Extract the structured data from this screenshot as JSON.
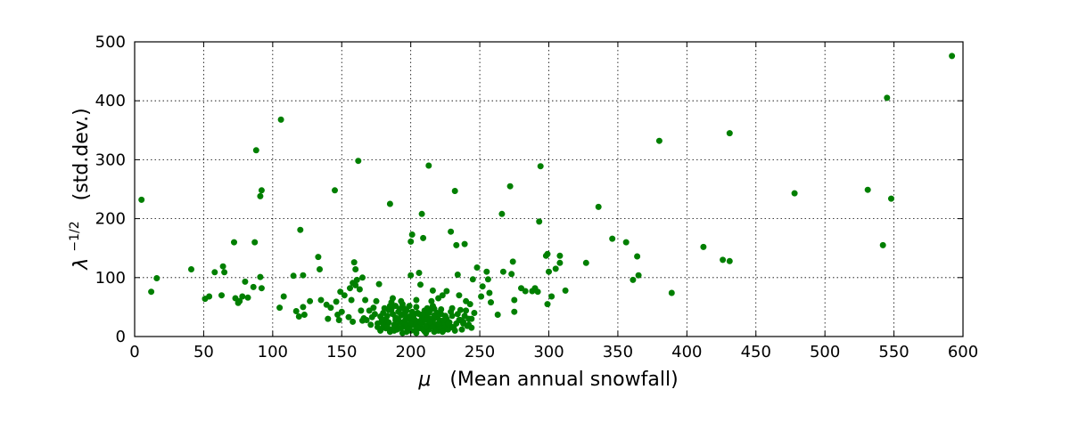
{
  "chart_data": {
    "type": "scatter",
    "xlabel_symbol": "μ",
    "xlabel_text": "(Mean annual snowfall)",
    "ylabel_symbol": "λ",
    "ylabel_exponent": "−1/2",
    "ylabel_text": "(std.dev.)",
    "xlim": [
      0,
      600
    ],
    "ylim": [
      0,
      500
    ],
    "xticks": [
      0,
      50,
      100,
      150,
      200,
      250,
      300,
      350,
      400,
      450,
      500,
      550,
      600
    ],
    "yticks": [
      0,
      100,
      200,
      300,
      400,
      500
    ],
    "grid": true,
    "marker_color": "#007f00",
    "points": [
      [
        5,
        232
      ],
      [
        12,
        76
      ],
      [
        16,
        99
      ],
      [
        41,
        114
      ],
      [
        51,
        64
      ],
      [
        54,
        68
      ],
      [
        58,
        109
      ],
      [
        63,
        70
      ],
      [
        64,
        119
      ],
      [
        65,
        109
      ],
      [
        72,
        160
      ],
      [
        73,
        65
      ],
      [
        75,
        57
      ],
      [
        76,
        60
      ],
      [
        78,
        68
      ],
      [
        80,
        93
      ],
      [
        82,
        66
      ],
      [
        86,
        84
      ],
      [
        87,
        160
      ],
      [
        88,
        316
      ],
      [
        91,
        101
      ],
      [
        91,
        238
      ],
      [
        92,
        248
      ],
      [
        92,
        82
      ],
      [
        105,
        49
      ],
      [
        106,
        368
      ],
      [
        108,
        68
      ],
      [
        115,
        103
      ],
      [
        117,
        43
      ],
      [
        119,
        34
      ],
      [
        120,
        181
      ],
      [
        122,
        104
      ],
      [
        122,
        50
      ],
      [
        123,
        37
      ],
      [
        127,
        60
      ],
      [
        133,
        135
      ],
      [
        134,
        114
      ],
      [
        135,
        62
      ],
      [
        139,
        54
      ],
      [
        140,
        30
      ],
      [
        142,
        49
      ],
      [
        145,
        248
      ],
      [
        146,
        59
      ],
      [
        147,
        37
      ],
      [
        148,
        28
      ],
      [
        149,
        76
      ],
      [
        150,
        42
      ],
      [
        152,
        70
      ],
      [
        155,
        33
      ],
      [
        156,
        82
      ],
      [
        157,
        62
      ],
      [
        158,
        91
      ],
      [
        158,
        25
      ],
      [
        159,
        126
      ],
      [
        160,
        114
      ],
      [
        160,
        87
      ],
      [
        161,
        96
      ],
      [
        162,
        298
      ],
      [
        163,
        80
      ],
      [
        164,
        44
      ],
      [
        165,
        27
      ],
      [
        165,
        100
      ],
      [
        166,
        31
      ],
      [
        167,
        62
      ],
      [
        170,
        44
      ],
      [
        172,
        33
      ],
      [
        173,
        49
      ],
      [
        175,
        60
      ],
      [
        176,
        22
      ],
      [
        177,
        89
      ],
      [
        178,
        34
      ],
      [
        180,
        15
      ],
      [
        180,
        40
      ],
      [
        182,
        30
      ],
      [
        184,
        45
      ],
      [
        185,
        225
      ],
      [
        186,
        58
      ],
      [
        187,
        65
      ],
      [
        189,
        32
      ],
      [
        190,
        18
      ],
      [
        192,
        47
      ],
      [
        193,
        60
      ],
      [
        194,
        22
      ],
      [
        195,
        39
      ],
      [
        196,
        28
      ],
      [
        198,
        15
      ],
      [
        199,
        52
      ],
      [
        200,
        104
      ],
      [
        200,
        161
      ],
      [
        201,
        173
      ],
      [
        202,
        35
      ],
      [
        204,
        62
      ],
      [
        205,
        25
      ],
      [
        206,
        108
      ],
      [
        207,
        88
      ],
      [
        208,
        208
      ],
      [
        209,
        167
      ],
      [
        210,
        44
      ],
      [
        212,
        18
      ],
      [
        213,
        290
      ],
      [
        214,
        30
      ],
      [
        215,
        60
      ],
      [
        216,
        78
      ],
      [
        217,
        47
      ],
      [
        219,
        20
      ],
      [
        220,
        65
      ],
      [
        222,
        38
      ],
      [
        223,
        70
      ],
      [
        225,
        25
      ],
      [
        226,
        77
      ],
      [
        228,
        15
      ],
      [
        229,
        178
      ],
      [
        230,
        48
      ],
      [
        232,
        247
      ],
      [
        233,
        155
      ],
      [
        234,
        105
      ],
      [
        235,
        70
      ],
      [
        236,
        45
      ],
      [
        238,
        25
      ],
      [
        239,
        157
      ],
      [
        240,
        60
      ],
      [
        242,
        30
      ],
      [
        243,
        55
      ],
      [
        245,
        97
      ],
      [
        248,
        117
      ],
      [
        251,
        68
      ],
      [
        252,
        85
      ],
      [
        255,
        110
      ],
      [
        256,
        97
      ],
      [
        257,
        74
      ],
      [
        258,
        58
      ],
      [
        263,
        37
      ],
      [
        266,
        208
      ],
      [
        267,
        110
      ],
      [
        272,
        255
      ],
      [
        273,
        106
      ],
      [
        274,
        127
      ],
      [
        275,
        62
      ],
      [
        275,
        42
      ],
      [
        280,
        82
      ],
      [
        283,
        77
      ],
      [
        288,
        77
      ],
      [
        290,
        82
      ],
      [
        292,
        76
      ],
      [
        293,
        195
      ],
      [
        294,
        289
      ],
      [
        298,
        137
      ],
      [
        299,
        140
      ],
      [
        299,
        55
      ],
      [
        300,
        110
      ],
      [
        302,
        68
      ],
      [
        305,
        115
      ],
      [
        308,
        125
      ],
      [
        308,
        137
      ],
      [
        312,
        78
      ],
      [
        327,
        125
      ],
      [
        336,
        220
      ],
      [
        346,
        166
      ],
      [
        356,
        160
      ],
      [
        361,
        96
      ],
      [
        364,
        136
      ],
      [
        365,
        104
      ],
      [
        380,
        332
      ],
      [
        389,
        74
      ],
      [
        412,
        152
      ],
      [
        426,
        130
      ],
      [
        431,
        128
      ],
      [
        431,
        345
      ],
      [
        478,
        243
      ],
      [
        531,
        249
      ],
      [
        542,
        155
      ],
      [
        545,
        405
      ],
      [
        548,
        234
      ],
      [
        592,
        476
      ],
      [
        178,
        10
      ],
      [
        182,
        14
      ],
      [
        185,
        8
      ],
      [
        188,
        20
      ],
      [
        190,
        12
      ],
      [
        192,
        25
      ],
      [
        194,
        6
      ],
      [
        196,
        17
      ],
      [
        198,
        30
      ],
      [
        200,
        10
      ],
      [
        202,
        20
      ],
      [
        204,
        6
      ],
      [
        206,
        14
      ],
      [
        208,
        24
      ],
      [
        210,
        9
      ],
      [
        211,
        36
      ],
      [
        213,
        12
      ],
      [
        215,
        20
      ],
      [
        217,
        8
      ],
      [
        219,
        15
      ],
      [
        221,
        27
      ],
      [
        224,
        11
      ],
      [
        226,
        18
      ],
      [
        230,
        35
      ],
      [
        233,
        22
      ],
      [
        237,
        12
      ],
      [
        241,
        18
      ],
      [
        244,
        30
      ],
      [
        184,
        24
      ],
      [
        187,
        38
      ],
      [
        191,
        42
      ],
      [
        195,
        48
      ],
      [
        197,
        8
      ],
      [
        201,
        42
      ],
      [
        203,
        28
      ],
      [
        207,
        16
      ],
      [
        209,
        38
      ],
      [
        211,
        6
      ],
      [
        214,
        44
      ],
      [
        216,
        16
      ],
      [
        218,
        32
      ],
      [
        220,
        10
      ],
      [
        222,
        46
      ],
      [
        225,
        35
      ],
      [
        227,
        12
      ],
      [
        183,
        18
      ],
      [
        186,
        12
      ],
      [
        189,
        28
      ],
      [
        193,
        14
      ],
      [
        197,
        20
      ],
      [
        199,
        34
      ],
      [
        203,
        10
      ],
      [
        205,
        40
      ],
      [
        207,
        22
      ],
      [
        210,
        28
      ],
      [
        212,
        48
      ],
      [
        216,
        26
      ],
      [
        218,
        10
      ],
      [
        220,
        36
      ],
      [
        223,
        20
      ],
      [
        226,
        30
      ],
      [
        229,
        42
      ],
      [
        231,
        15
      ],
      [
        234,
        38
      ],
      [
        236,
        28
      ],
      [
        240,
        44
      ],
      [
        242,
        20
      ],
      [
        246,
        40
      ],
      [
        180,
        22
      ],
      [
        183,
        35
      ],
      [
        186,
        46
      ],
      [
        188,
        10
      ],
      [
        191,
        28
      ],
      [
        194,
        55
      ],
      [
        196,
        36
      ],
      [
        199,
        14
      ],
      [
        201,
        28
      ],
      [
        204,
        50
      ],
      [
        206,
        38
      ],
      [
        209,
        12
      ],
      [
        212,
        28
      ],
      [
        213,
        40
      ],
      [
        216,
        52
      ],
      [
        219,
        40
      ],
      [
        221,
        16
      ],
      [
        224,
        28
      ],
      [
        228,
        24
      ],
      [
        232,
        10
      ],
      [
        235,
        28
      ],
      [
        239,
        35
      ],
      [
        176,
        16
      ],
      [
        179,
        28
      ],
      [
        174,
        38
      ],
      [
        171,
        20
      ],
      [
        168,
        28
      ],
      [
        181,
        48
      ],
      [
        185,
        52
      ],
      [
        189,
        52
      ],
      [
        193,
        36
      ],
      [
        197,
        44
      ],
      [
        200,
        22
      ],
      [
        205,
        16
      ],
      [
        208,
        30
      ],
      [
        211,
        18
      ],
      [
        214,
        24
      ],
      [
        217,
        36
      ],
      [
        220,
        22
      ],
      [
        223,
        8
      ],
      [
        227,
        22
      ],
      [
        230,
        16
      ],
      [
        238,
        22
      ],
      [
        244,
        15
      ]
    ]
  }
}
